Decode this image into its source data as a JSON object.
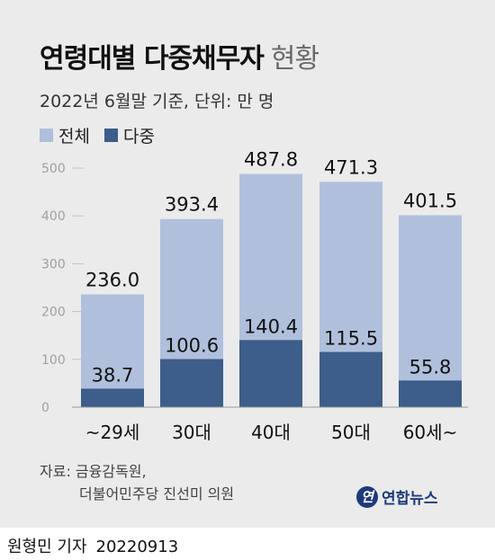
{
  "title_main": "연령대별 다중채무자",
  "title_sub": "현황",
  "subtitle": "2022년 6월말 기준, 단위: 만 명",
  "legend": [
    {
      "label": "전체",
      "color": "#b0c0dc"
    },
    {
      "label": "다중",
      "color": "#3d5d8a"
    }
  ],
  "source_line1": "자료: 금융감독원,",
  "source_line2": "더불어민주당 진선미 의원",
  "logo_text": "연합뉴스",
  "logo_mark": "연",
  "byline_name": "원형민 기자",
  "byline_date": "20220913",
  "chart_data": {
    "type": "bar",
    "categories": [
      "~29세",
      "30대",
      "40대",
      "50대",
      "60세~"
    ],
    "series": [
      {
        "name": "전체",
        "values": [
          236.0,
          393.4,
          487.8,
          471.3,
          401.5
        ],
        "color": "#b0c0dc"
      },
      {
        "name": "다중",
        "values": [
          38.7,
          100.6,
          140.4,
          115.5,
          55.8
        ],
        "color": "#3d5d8a"
      }
    ],
    "value_labels_total": [
      "236.0",
      "393.4",
      "487.8",
      "471.3",
      "401.5"
    ],
    "value_labels_multi": [
      "38.7",
      "100.6",
      "140.4",
      "115.5",
      "55.8"
    ],
    "yticks": [
      0,
      100,
      200,
      300,
      400,
      500
    ],
    "ylim": [
      0,
      500
    ],
    "grid": true
  }
}
